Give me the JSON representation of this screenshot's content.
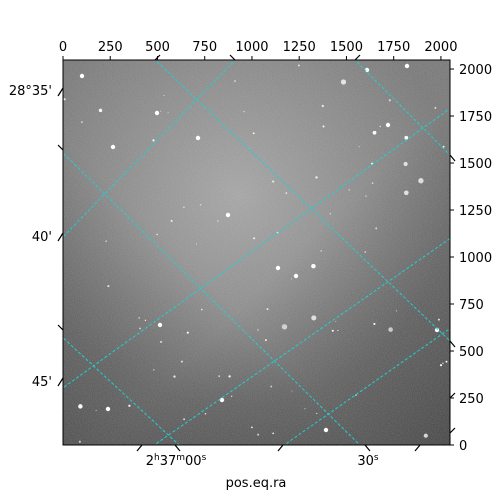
{
  "chart_data": {
    "type": "image",
    "xlabel": "pos.eq.ra",
    "pixel_x_axis": {
      "ticks": [
        0,
        250,
        500,
        750,
        1000,
        1250,
        1500,
        1750,
        2000
      ],
      "range": [
        0,
        2048
      ]
    },
    "pixel_y_axis": {
      "ticks": [
        0,
        250,
        500,
        750,
        1000,
        1250,
        1500,
        1750,
        2000
      ],
      "range": [
        0,
        2048
      ]
    },
    "ra_ticks": [
      {
        "label_main": "2",
        "sup1": "h",
        "mid": "37",
        "sup2": "m",
        "tail": "00",
        "sup3": "s"
      },
      {
        "label_main": "30",
        "sup1": "s",
        "mid": "",
        "sup2": "",
        "tail": "",
        "sup3": ""
      }
    ],
    "dec_ticks": [
      "28°35'",
      "40'",
      "45'"
    ],
    "grid_color": "#20d0d0",
    "colormap": "gray"
  }
}
